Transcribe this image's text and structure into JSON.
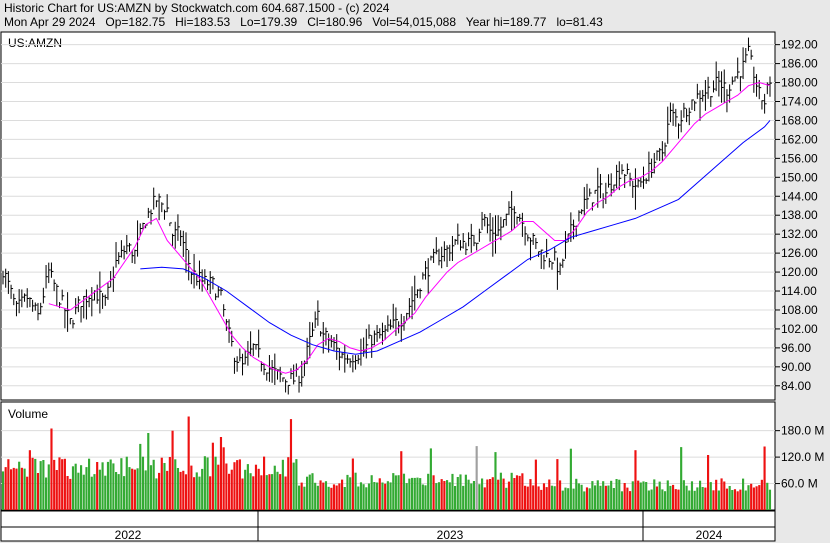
{
  "header": {
    "line1": "Historic Chart for US:AMZN by Stockwatch.com 604.687.1500 - (c) 2024",
    "line2": "Mon Apr 29 2024   Op=182.75   Hi=183.53   Lo=179.39   Cl=180.96   Vol=54,015,088   Year hi=189.77   lo=81.43"
  },
  "chart_data": {
    "type": "line",
    "price_panel": {
      "symbol_label": "US:AMZN",
      "y_ticks": [
        192.0,
        186.0,
        180.0,
        174.0,
        168.0,
        162.0,
        156.0,
        150.0,
        144.0,
        138.0,
        132.0,
        126.0,
        120.0,
        114.0,
        108.0,
        102.0,
        96.0,
        90.0,
        84.0
      ],
      "ylim": [
        79.5,
        196.0
      ],
      "price_keypoints": [
        [
          0,
          121
        ],
        [
          5,
          108
        ],
        [
          9,
          112
        ],
        [
          13,
          106
        ],
        [
          17,
          120
        ],
        [
          21,
          112
        ],
        [
          25,
          104
        ],
        [
          29,
          111
        ],
        [
          34,
          114
        ],
        [
          38,
          110
        ],
        [
          42,
          123
        ],
        [
          46,
          128
        ],
        [
          49,
          126
        ],
        [
          53,
          137
        ],
        [
          57,
          143
        ],
        [
          61,
          140
        ],
        [
          63,
          132
        ],
        [
          66,
          132
        ],
        [
          70,
          120
        ],
        [
          74,
          117
        ],
        [
          78,
          116
        ],
        [
          81,
          112
        ],
        [
          83,
          103
        ],
        [
          86,
          94
        ],
        [
          89,
          90
        ],
        [
          93,
          96
        ],
        [
          97,
          91
        ],
        [
          101,
          88
        ],
        [
          105,
          86
        ],
        [
          108,
          86
        ],
        [
          111,
          88
        ],
        [
          114,
          98
        ],
        [
          117,
          106
        ],
        [
          119,
          100
        ],
        [
          122,
          98
        ],
        [
          125,
          94
        ],
        [
          128,
          93
        ],
        [
          131,
          94
        ],
        [
          134,
          95
        ],
        [
          137,
          99
        ],
        [
          141,
          100
        ],
        [
          145,
          103
        ],
        [
          149,
          106
        ],
        [
          153,
          113
        ],
        [
          157,
          120
        ],
        [
          161,
          125
        ],
        [
          165,
          127
        ],
        [
          169,
          130
        ],
        [
          173,
          129
        ],
        [
          176,
          131
        ],
        [
          178,
          138
        ],
        [
          181,
          133
        ],
        [
          184,
          133
        ],
        [
          187,
          137
        ],
        [
          190,
          141
        ],
        [
          193,
          136
        ],
        [
          196,
          131
        ],
        [
          199,
          127
        ],
        [
          202,
          125
        ],
        [
          205,
          124
        ],
        [
          207,
          120
        ],
        [
          209,
          128
        ],
        [
          212,
          135
        ],
        [
          215,
          141
        ],
        [
          218,
          143
        ],
        [
          221,
          146
        ],
        [
          224,
          145
        ],
        [
          227,
          150
        ],
        [
          230,
          153
        ],
        [
          233,
          149
        ],
        [
          236,
          147
        ],
        [
          239,
          151
        ],
        [
          242,
          155
        ],
        [
          245,
          158
        ],
        [
          248,
          170
        ],
        [
          251,
          168
        ],
        [
          254,
          172
        ],
        [
          257,
          175
        ],
        [
          260,
          177
        ],
        [
          263,
          178
        ],
        [
          266,
          180
        ],
        [
          269,
          178
        ],
        [
          272,
          182
        ],
        [
          275,
          185
        ],
        [
          277,
          189
        ],
        [
          279,
          183
        ],
        [
          281,
          176
        ],
        [
          283,
          174
        ],
        [
          285,
          181
        ]
      ],
      "moving_averages": [
        {
          "name": "short",
          "color": "#ff00ff",
          "keypoints": [
            [
              17,
              110
            ],
            [
              25,
              108
            ],
            [
              33,
              113
            ],
            [
              41,
              118
            ],
            [
              49,
              128
            ],
            [
              53,
              135
            ],
            [
              57,
              137
            ],
            [
              61,
              130
            ],
            [
              65,
              126
            ],
            [
              69,
              122
            ],
            [
              73,
              118
            ],
            [
              77,
              112
            ],
            [
              81,
              106
            ],
            [
              85,
              100
            ],
            [
              89,
              96
            ],
            [
              93,
              93
            ],
            [
              97,
              91
            ],
            [
              101,
              89
            ],
            [
              105,
              88
            ],
            [
              109,
              89
            ],
            [
              113,
              92
            ],
            [
              117,
              97
            ],
            [
              121,
              99
            ],
            [
              125,
              98
            ],
            [
              129,
              96
            ],
            [
              133,
              95
            ],
            [
              137,
              96
            ],
            [
              141,
              98
            ],
            [
              145,
              101
            ],
            [
              149,
              104
            ],
            [
              153,
              107
            ],
            [
              157,
              112
            ],
            [
              161,
              116
            ],
            [
              165,
              120
            ],
            [
              169,
              123
            ],
            [
              173,
              125
            ],
            [
              177,
              127
            ],
            [
              181,
              129
            ],
            [
              185,
              131
            ],
            [
              189,
              133
            ],
            [
              193,
              136
            ],
            [
              197,
              136
            ],
            [
              201,
              133
            ],
            [
              205,
              130
            ],
            [
              209,
              130
            ],
            [
              213,
              134
            ],
            [
              217,
              139
            ],
            [
              221,
              142
            ],
            [
              225,
              144
            ],
            [
              229,
              147
            ],
            [
              233,
              149
            ],
            [
              237,
              150
            ],
            [
              241,
              152
            ],
            [
              245,
              155
            ],
            [
              249,
              159
            ],
            [
              253,
              163
            ],
            [
              257,
              167
            ],
            [
              261,
              170
            ],
            [
              265,
              172
            ],
            [
              269,
              174
            ],
            [
              273,
              176
            ],
            [
              277,
              179
            ],
            [
              281,
              180
            ],
            [
              285,
              179
            ]
          ]
        },
        {
          "name": "long",
          "color": "#0000ff",
          "keypoints": [
            [
              51,
              121
            ],
            [
              59,
              121.5
            ],
            [
              67,
              121
            ],
            [
              75,
              118
            ],
            [
              83,
              114
            ],
            [
              91,
              109
            ],
            [
              99,
              104
            ],
            [
              107,
              100
            ],
            [
              115,
              97
            ],
            [
              123,
              95
            ],
            [
              131,
              94
            ],
            [
              139,
              95
            ],
            [
              147,
              98
            ],
            [
              155,
              101
            ],
            [
              163,
              105
            ],
            [
              171,
              109
            ],
            [
              179,
              114
            ],
            [
              187,
              119
            ],
            [
              195,
              124
            ],
            [
              203,
              127
            ],
            [
              211,
              131
            ],
            [
              219,
              133
            ],
            [
              227,
              135
            ],
            [
              235,
              137
            ],
            [
              243,
              140
            ],
            [
              251,
              143
            ],
            [
              259,
              149
            ],
            [
              267,
              155
            ],
            [
              275,
              161
            ],
            [
              283,
              166
            ],
            [
              285,
              168
            ]
          ]
        }
      ]
    },
    "volume_panel": {
      "label": "Volume",
      "y_ticks": [
        "180.0 M",
        "120.0 M",
        "60.0 M"
      ],
      "tick_values": [
        180,
        120,
        60
      ],
      "ylim": [
        0,
        245
      ],
      "unit": "M"
    },
    "x_axis": {
      "labels": [
        "2022",
        "2023",
        "2024"
      ],
      "bar_count": 286
    }
  }
}
